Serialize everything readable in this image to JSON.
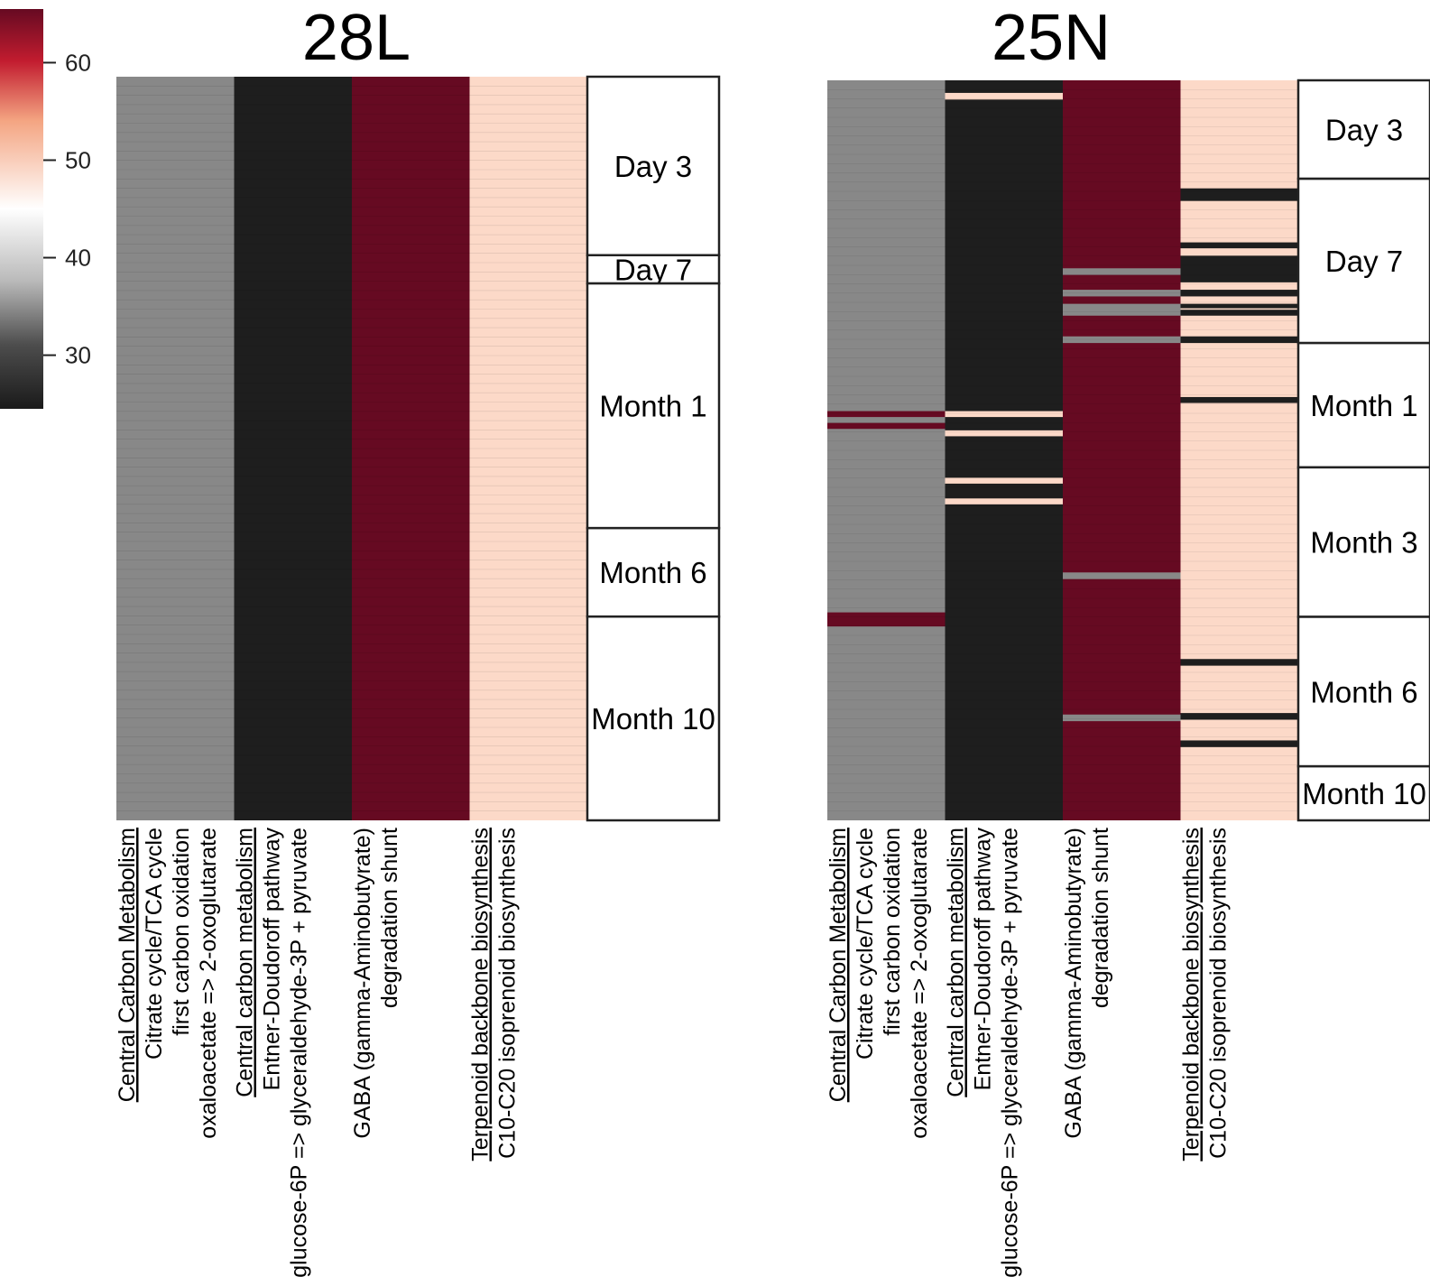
{
  "colors": {
    "grey": "#888888",
    "black": "#1e1e1e",
    "darkred": "#660a22",
    "peach": "#fcd9c8",
    "background": "#ffffff",
    "border": "#222222"
  },
  "colorbar": {
    "min": 24.5,
    "max": 65.5,
    "ticks": [
      "60",
      "50",
      "40",
      "30"
    ],
    "tick_values": [
      60,
      50,
      40,
      30
    ],
    "stops": [
      {
        "offset": 0.0,
        "color": "#660a22"
      },
      {
        "offset": 0.13,
        "color": "#c21c2f"
      },
      {
        "offset": 0.28,
        "color": "#f4a582"
      },
      {
        "offset": 0.5,
        "color": "#ffffff"
      },
      {
        "offset": 0.68,
        "color": "#bababa"
      },
      {
        "offset": 0.84,
        "color": "#4d4d4d"
      },
      {
        "offset": 1.0,
        "color": "#1a1a1a"
      }
    ]
  },
  "chart_data": [
    {
      "type": "heatmap",
      "title": "28L",
      "columns": [
        {
          "header": "Central Carbon Metabolism",
          "lines": [
            "Citrate cycle/TCA cycle",
            "first carbon oxidation",
            "oxaloacetate => 2-oxoglutarate"
          ],
          "base": "grey",
          "bands": []
        },
        {
          "header": "Central carbon metabolism",
          "lines": [
            "Entner-Doudoroff pathway",
            "glucose-6P => glyceraldehyde-3P + pyruvate"
          ],
          "base": "black",
          "bands": []
        },
        {
          "header": "",
          "lines": [
            "GABA (gamma-Aminobutyrate)",
            "degradation shunt"
          ],
          "base": "darkred",
          "bands": []
        },
        {
          "header": "Terpenoid backbone biosynthesis",
          "lines": [
            "C10-C20 isoprenoid biosynthesis"
          ],
          "base": "peach",
          "bands": []
        }
      ],
      "time_groups": [
        {
          "label": "Day 3",
          "start": 0.0,
          "end": 0.24
        },
        {
          "label": "Day 7",
          "start": 0.24,
          "end": 0.278
        },
        {
          "label": "Month 1",
          "start": 0.278,
          "end": 0.607
        },
        {
          "label": "Month 6",
          "start": 0.607,
          "end": 0.726
        },
        {
          "label": "Month 10",
          "start": 0.726,
          "end": 1.0
        }
      ]
    },
    {
      "type": "heatmap",
      "title": "25N",
      "columns": [
        {
          "header": "Central Carbon Metabolism",
          "lines": [
            "Citrate cycle/TCA cycle",
            "first carbon oxidation",
            "oxaloacetate => 2-oxoglutarate"
          ],
          "base": "grey",
          "bands": [
            {
              "start": 0.447,
              "end": 0.455,
              "color": "darkred"
            },
            {
              "start": 0.463,
              "end": 0.471,
              "color": "darkred"
            },
            {
              "start": 0.719,
              "end": 0.738,
              "color": "darkred"
            }
          ]
        },
        {
          "header": "Central carbon metabolism",
          "lines": [
            "Entner-Doudoroff pathway",
            "glucose-6P => glyceraldehyde-3P + pyruvate"
          ],
          "base": "black",
          "bands": [
            {
              "start": 0.017,
              "end": 0.026,
              "color": "peach"
            },
            {
              "start": 0.447,
              "end": 0.455,
              "color": "peach"
            },
            {
              "start": 0.473,
              "end": 0.481,
              "color": "peach"
            },
            {
              "start": 0.537,
              "end": 0.545,
              "color": "peach"
            },
            {
              "start": 0.565,
              "end": 0.573,
              "color": "peach"
            }
          ]
        },
        {
          "header": "",
          "lines": [
            "GABA (gamma-Aminobutyrate)",
            "degradation shunt"
          ],
          "base": "darkred",
          "bands": [
            {
              "start": 0.254,
              "end": 0.263,
              "color": "grey"
            },
            {
              "start": 0.283,
              "end": 0.292,
              "color": "grey"
            },
            {
              "start": 0.302,
              "end": 0.318,
              "color": "grey"
            },
            {
              "start": 0.346,
              "end": 0.355,
              "color": "grey"
            },
            {
              "start": 0.665,
              "end": 0.674,
              "color": "grey"
            },
            {
              "start": 0.857,
              "end": 0.866,
              "color": "grey"
            }
          ]
        },
        {
          "header": "Terpenoid backbone biosynthesis",
          "lines": [
            "C10-C20 isoprenoid biosynthesis"
          ],
          "base": "peach",
          "bands": [
            {
              "start": 0.146,
              "end": 0.163,
              "color": "black"
            },
            {
              "start": 0.219,
              "end": 0.227,
              "color": "black"
            },
            {
              "start": 0.237,
              "end": 0.273,
              "color": "black"
            },
            {
              "start": 0.283,
              "end": 0.292,
              "color": "black"
            },
            {
              "start": 0.302,
              "end": 0.308,
              "color": "black"
            },
            {
              "start": 0.31,
              "end": 0.318,
              "color": "black"
            },
            {
              "start": 0.346,
              "end": 0.355,
              "color": "black"
            },
            {
              "start": 0.428,
              "end": 0.436,
              "color": "black"
            },
            {
              "start": 0.782,
              "end": 0.791,
              "color": "black"
            },
            {
              "start": 0.855,
              "end": 0.864,
              "color": "black"
            },
            {
              "start": 0.892,
              "end": 0.901,
              "color": "black"
            }
          ]
        }
      ],
      "time_groups": [
        {
          "label": "Day 3",
          "start": 0.0,
          "end": 0.133
        },
        {
          "label": "Day 7",
          "start": 0.133,
          "end": 0.355
        },
        {
          "label": "Month 1",
          "start": 0.355,
          "end": 0.523
        },
        {
          "label": "Month 3",
          "start": 0.523,
          "end": 0.725
        },
        {
          "label": "Month 6",
          "start": 0.725,
          "end": 0.927
        },
        {
          "label": "Month 10",
          "start": 0.927,
          "end": 1.0
        }
      ]
    }
  ]
}
